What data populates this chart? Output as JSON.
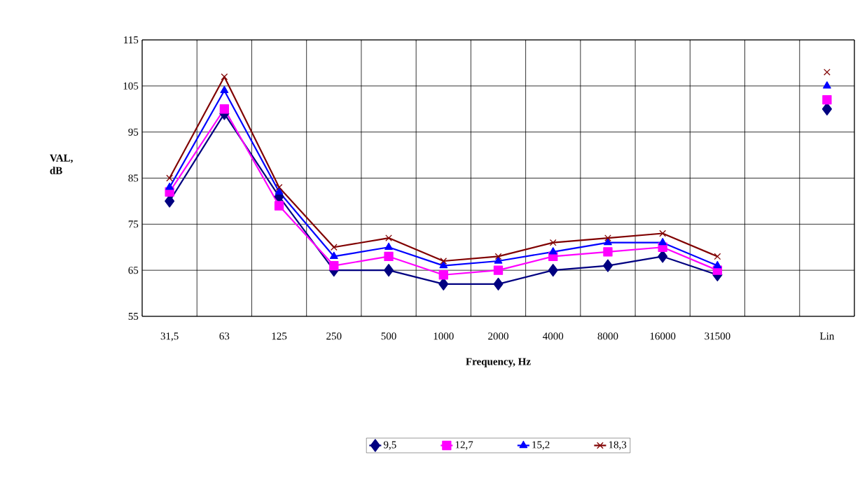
{
  "chart_data": {
    "type": "line",
    "xlabel": "Frequency, Hz",
    "ylabel": "VAL, dB",
    "categories": [
      "31,5",
      "63",
      "125",
      "250",
      "500",
      "1000",
      "2000",
      "4000",
      "8000",
      "16000",
      "31500",
      null,
      "Lin"
    ],
    "series": [
      {
        "name": "9,5",
        "color": "#000080",
        "marker": "diamond",
        "values": [
          80,
          99,
          81,
          65,
          65,
          62,
          62,
          65,
          66,
          68,
          64,
          null,
          100
        ]
      },
      {
        "name": "12,7",
        "color": "#ff00ff",
        "marker": "square",
        "values": [
          82,
          100,
          79,
          66,
          68,
          64,
          65,
          68,
          69,
          70,
          65,
          null,
          102
        ]
      },
      {
        "name": "15,2",
        "color": "#0000ff",
        "marker": "triangle",
        "values": [
          83,
          104,
          82,
          68,
          70,
          66,
          67,
          69,
          71,
          71,
          66,
          null,
          105
        ]
      },
      {
        "name": "18,3",
        "color": "#800000",
        "marker": "cross",
        "values": [
          85,
          107,
          83,
          70,
          72,
          67,
          68,
          71,
          72,
          73,
          68,
          null,
          108
        ]
      }
    ],
    "ylim": [
      55,
      115
    ],
    "yticks": [
      55,
      65,
      75,
      85,
      95,
      105,
      115
    ],
    "grid": true,
    "legend": "bottom",
    "line_style": "solid"
  }
}
